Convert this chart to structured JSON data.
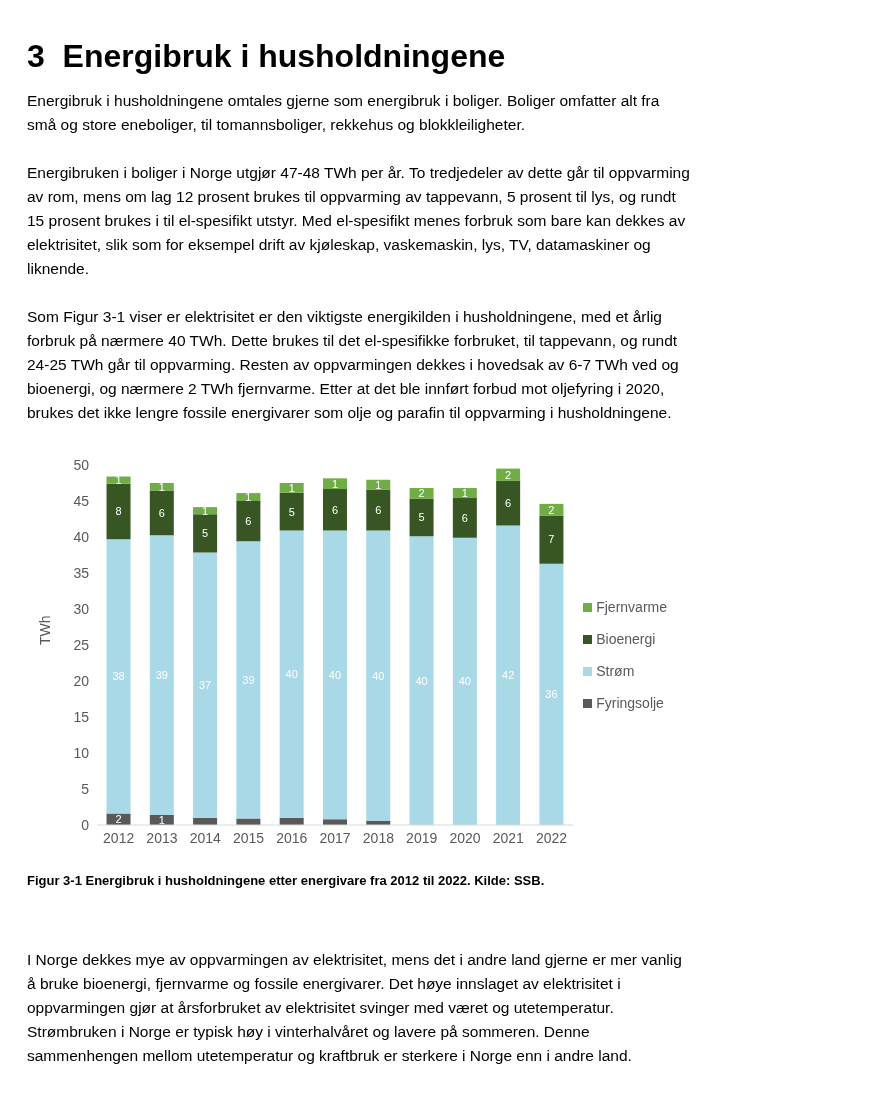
{
  "chart_data": {
    "type": "bar",
    "title": "3  Energibruk i husholdningene",
    "annotations": [
      "Energibruk i husholdningene omtales gjerne som energibruk i boliger. Boliger omfatter alt fra små og store eneboliger, til tomannsboliger, rekkehus og blokkleiligheter.",
      "Energibruken i boliger i Norge utgjør 47-48 TWh per år. To tredjedeler av dette går til oppvarming av rom, mens om lag 12 prosent brukes til oppvarming av tappevann, 5 prosent til lys, og rundt 15 prosent brukes i til el-spesifikt utstyr. Med el-spesifikt menes forbruk som bare kan dekkes av elektrisitet, slik som for eksempel drift av kjøleskap, vaskemaskin, lys, TV, datamaskiner og liknende.",
      "Som Figur 3-1 viser er elektrisitet er den viktigste energikilden i husholdningene, med et årlig forbruk på nærmere 40 TWh. Dette brukes til det el-spesifikke forbruket, til tappevann, og rundt 24-25 TWh går til oppvarming. Resten av oppvarmingen dekkes i hovedsak av 6-7 TWh ved og bioenergi, og nærmere 2 TWh fjernvarme. Etter at det ble innført forbud mot oljefyring i 2020, brukes det ikke lengre fossile energivarer som olje og parafin til oppvarming i husholdningene.",
      "Figur 3-1  Energibruk i husholdningene etter energivare fra 2012 til 2022. Kilde: SSB.",
      "I Norge dekkes mye av oppvarmingen av elektrisitet, mens det i andre land gjerne er mer vanlig å bruke bioenergi, fjernvarme og fossile energivarer. Det høye innslaget av elektrisitet i oppvarmingen gjør at årsforbruket av elektrisitet svinger med været og utetemperatur. Strømbruken i Norge er typisk høy i vinterhalvåret og lavere på sommeren. Denne sammenhengen mellom utetemperatur og kraftbruk er sterkere i Norge enn i andre land."
    ],
    "ylabel": "TWh",
    "categories": [
      "2012",
      "2013",
      "2014",
      "2015",
      "2016",
      "2017",
      "2018",
      "2019",
      "2020",
      "2021",
      "2022"
    ],
    "stacked": true,
    "series": [
      {
        "name": "Fyringsolje",
        "color": "#595959",
        "values": [
          1.6,
          1.4,
          1.0,
          0.9,
          1.0,
          0.8,
          0.6,
          0,
          0,
          0,
          0
        ],
        "value_labels": [
          "2",
          "1",
          null,
          null,
          null,
          null,
          null,
          null,
          null,
          null,
          null
        ]
      },
      {
        "name": "Strøm",
        "color": "#a9d8e6",
        "values": [
          38.1,
          38.85,
          36.85,
          38.5,
          39.9,
          40.1,
          40.3,
          40.1,
          39.9,
          41.6,
          36.3
        ],
        "value_labels": [
          "38",
          "39",
          "37",
          "39",
          "40",
          "40",
          "40",
          "40",
          "40",
          "42",
          "36"
        ]
      },
      {
        "name": "Bioenergi",
        "color": "#375623",
        "values": [
          7.7,
          6.2,
          5.3,
          5.6,
          5.25,
          5.75,
          5.65,
          5.2,
          5.5,
          6.2,
          6.7
        ],
        "value_labels": [
          "8",
          "6",
          "5",
          "6",
          "5",
          "6",
          "6",
          "5",
          "6",
          "6",
          "7"
        ]
      },
      {
        "name": "Fjernvarme",
        "color": "#70ad47",
        "values": [
          1.0,
          1.05,
          1.0,
          1.1,
          1.35,
          1.5,
          1.4,
          1.5,
          1.4,
          1.7,
          1.6
        ],
        "value_labels": [
          "1",
          "1",
          "1",
          "1",
          "1",
          "1",
          "1",
          "2",
          "1",
          "2",
          "2"
        ]
      }
    ],
    "ylim": [
      0,
      50
    ],
    "yticks": [
      0,
      5,
      10,
      15,
      20,
      25,
      30,
      35,
      40,
      45,
      50
    ],
    "grid": false,
    "legend": "right"
  }
}
